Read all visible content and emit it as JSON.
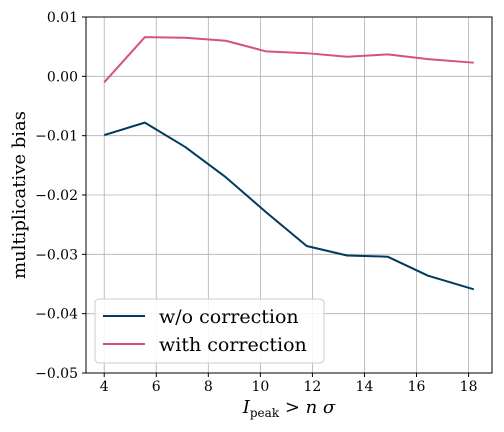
{
  "chart_data": {
    "type": "line",
    "xlabel_base": "I",
    "xlabel_sub": "peak",
    "xlabel_rest": " > n σ",
    "ylabel": "multiplicative bias",
    "xlim": [
      3.3,
      18.9
    ],
    "ylim": [
      -0.05,
      0.01
    ],
    "xticks": [
      4,
      6,
      8,
      10,
      12,
      14,
      16,
      18
    ],
    "yticks": [
      -0.05,
      -0.04,
      -0.03,
      -0.02,
      -0.01,
      0.0,
      0.01
    ],
    "ytick_labels": [
      "−0.05",
      "−0.04",
      "−0.03",
      "−0.02",
      "−0.01",
      "0.00",
      "0.01"
    ],
    "grid": true,
    "legend_position": "lower-left",
    "x": [
      4.0,
      5.56,
      7.11,
      8.67,
      10.22,
      11.78,
      13.33,
      14.89,
      16.44,
      18.2
    ],
    "series": [
      {
        "name": "w/o correction",
        "color": "#003a5c",
        "values": [
          -0.0099,
          -0.0078,
          -0.0119,
          -0.017,
          -0.0229,
          -0.0286,
          -0.0302,
          -0.0304,
          -0.0336,
          -0.0359
        ]
      },
      {
        "name": "with correction",
        "color": "#d6527c",
        "values": [
          -0.001,
          0.0066,
          0.0065,
          0.006,
          0.0042,
          0.0039,
          0.0033,
          0.0037,
          0.0029,
          0.0023
        ]
      }
    ]
  }
}
